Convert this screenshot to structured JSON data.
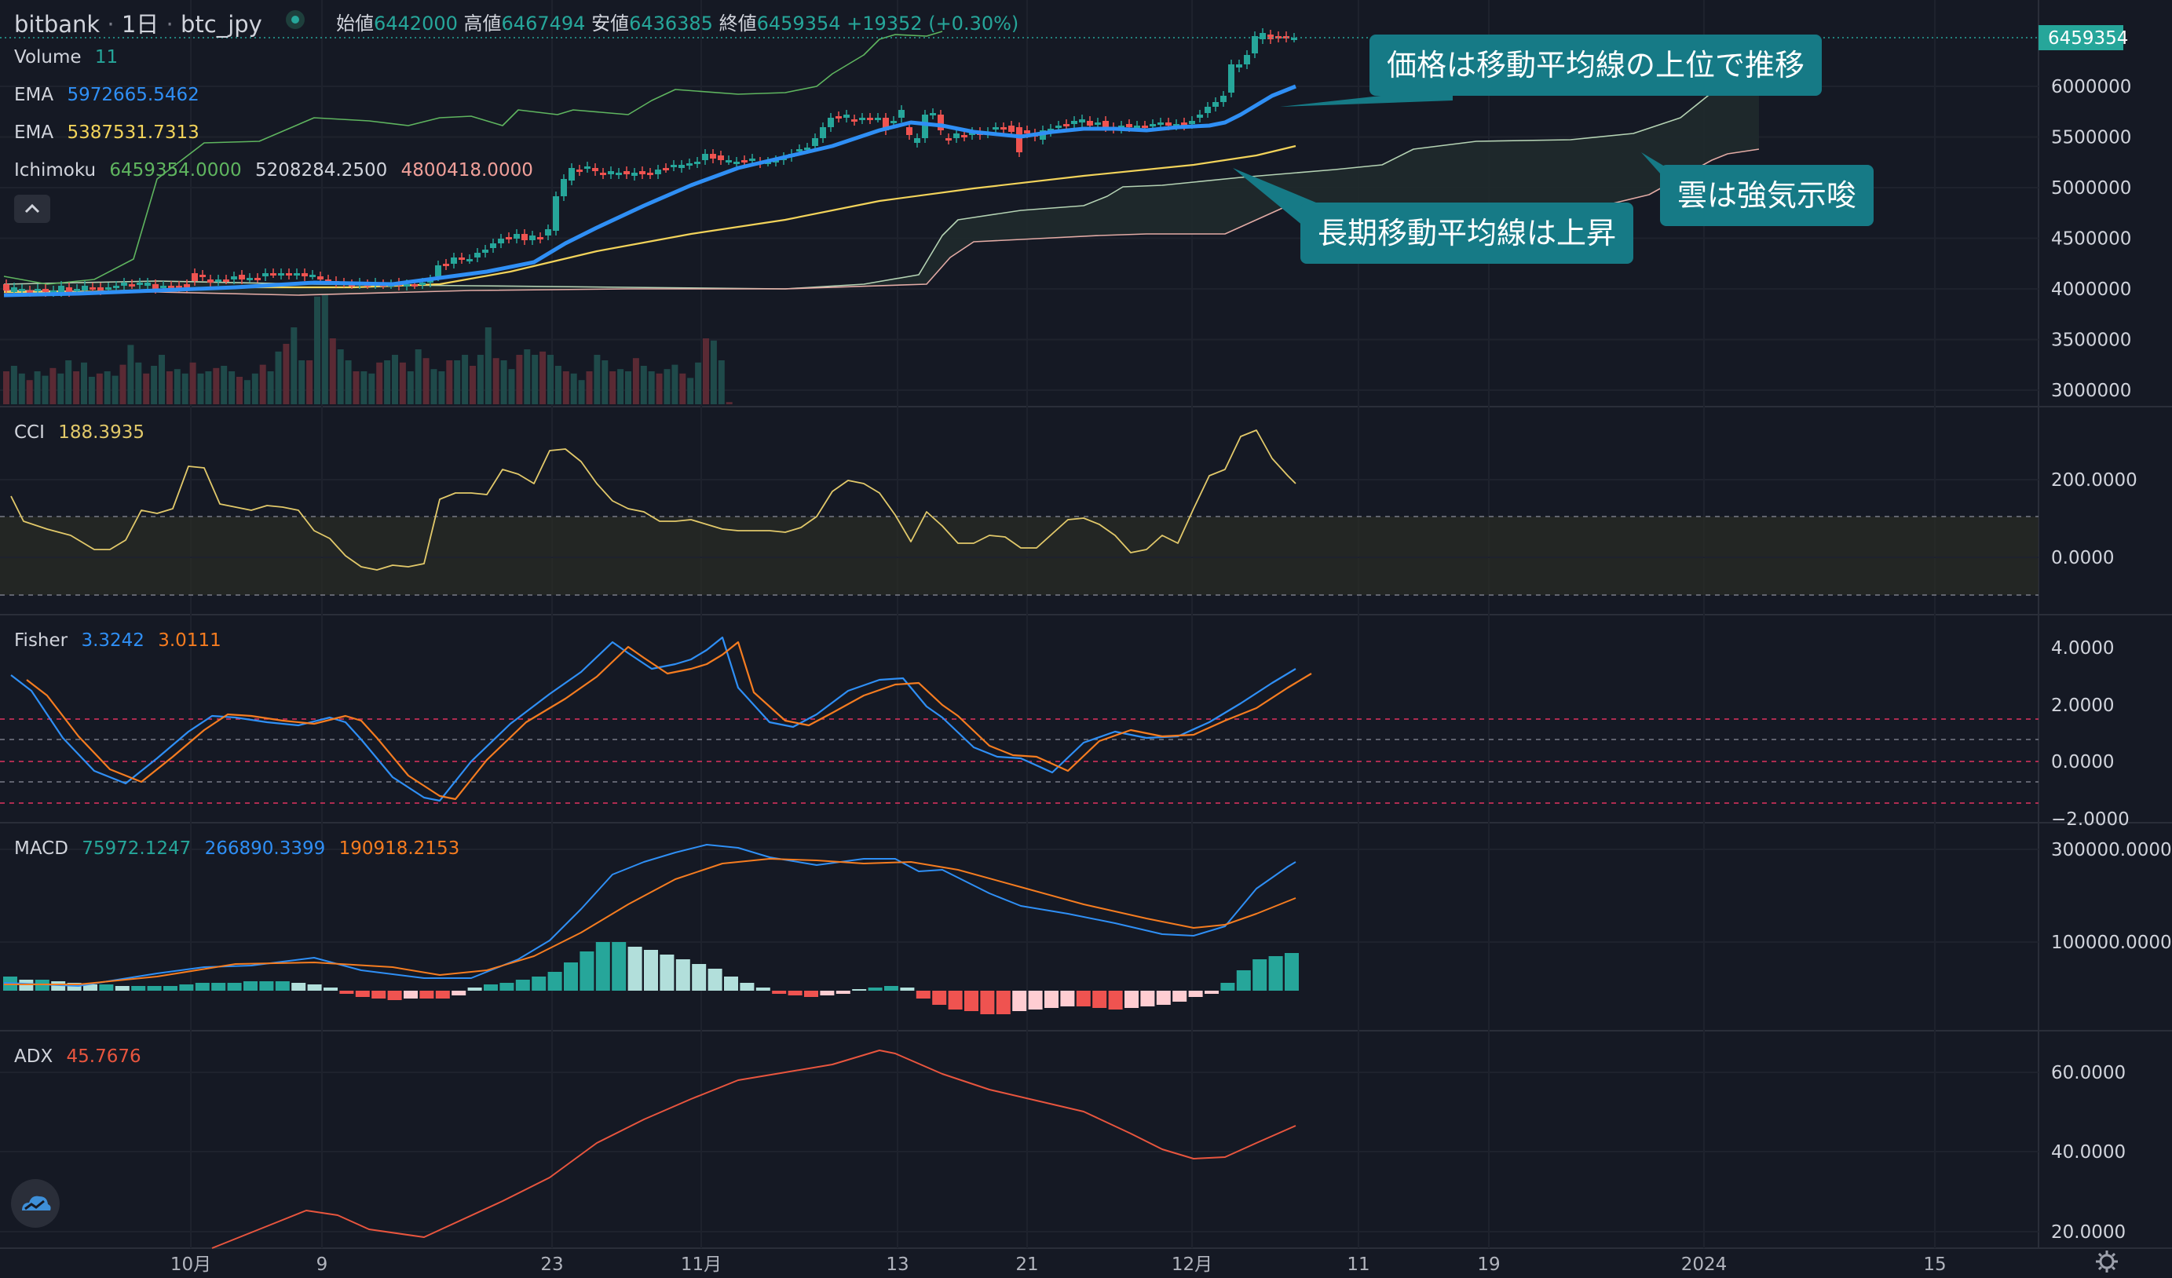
{
  "header": {
    "exchange": "bitbank",
    "interval": "1日",
    "symbol": "btc_jpy",
    "open_label": "始値",
    "open_value": "6442000",
    "high_label": "高値",
    "high_value": "6467494",
    "low_label": "安値",
    "low_value": "6436385",
    "close_label": "終値",
    "close_value": "6459354",
    "change": "+19352 (+0.30%)"
  },
  "legend": {
    "volume": {
      "name": "Volume",
      "value": "11"
    },
    "ema1": {
      "name": "EMA",
      "value": "5972665.5462"
    },
    "ema2": {
      "name": "EMA",
      "value": "5387531.7313"
    },
    "ichimoku": {
      "name": "Ichimoku",
      "v1": "6459354.0000",
      "v2": "5208284.2500",
      "v3": "4800418.0000"
    },
    "cci": {
      "name": "CCI",
      "value": "188.3935"
    },
    "fisher": {
      "name": "Fisher",
      "v1": "3.3242",
      "v2": "3.0111"
    },
    "macd": {
      "name": "MACD",
      "v1": "75972.1247",
      "v2": "266890.3399",
      "v3": "190918.2153"
    },
    "adx": {
      "name": "ADX",
      "value": "45.7676"
    }
  },
  "price_axis": {
    "ticks": [
      "6000000",
      "5500000",
      "5000000",
      "4500000",
      "4000000",
      "3500000",
      "3000000"
    ],
    "last_price": "6459354"
  },
  "cci_axis": {
    "ticks": [
      "200.0000",
      "0.0000"
    ]
  },
  "fisher_axis": {
    "ticks": [
      "4.0000",
      "2.0000",
      "0.0000",
      "−2.0000"
    ]
  },
  "macd_axis": {
    "ticks": [
      "300000.0000",
      "100000.0000"
    ]
  },
  "adx_axis": {
    "ticks": [
      "60.0000",
      "40.0000",
      "20.0000"
    ]
  },
  "time_axis": {
    "labels": [
      "10月",
      "9",
      "23",
      "11月",
      "13",
      "21",
      "12月",
      "11",
      "19",
      "2024",
      "15"
    ]
  },
  "callouts": {
    "price_above_ma": "価格は移動平均線の上位で推移",
    "long_ma_rising": "長期移動平均線は上昇",
    "cloud_bullish": "雲は強気示唆"
  },
  "colors": {
    "background": "#151924",
    "ema_fast": "#2f8ff5",
    "ema_slow": "#f2d35a",
    "up": "#26a69a",
    "down": "#ef5350",
    "callout": "#167a86",
    "fisher_main": "#2f8ff5",
    "fisher_signal": "#f57c20",
    "adx": "#e8553e",
    "cci": "#e2c96a"
  },
  "icons": {
    "collapse": "chevron-up-icon",
    "logo": "tradingview-cloud-icon",
    "settings": "gear-icon"
  }
}
